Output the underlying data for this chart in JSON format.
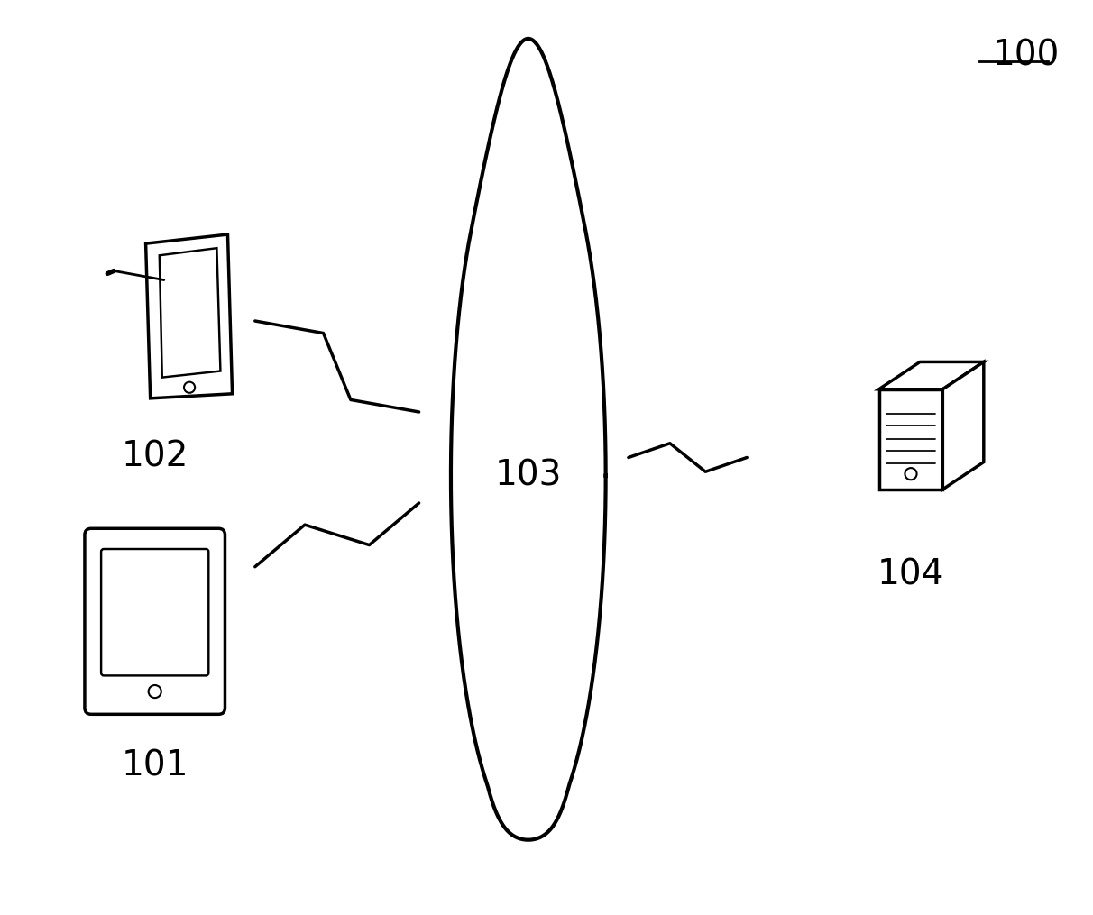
{
  "background_color": "#ffffff",
  "label_100": "100",
  "label_101": "101",
  "label_102": "102",
  "label_103": "103",
  "label_104": "104",
  "line_color": "#000000",
  "line_width": 2.5,
  "fig_width": 12.12,
  "fig_height": 10.15
}
